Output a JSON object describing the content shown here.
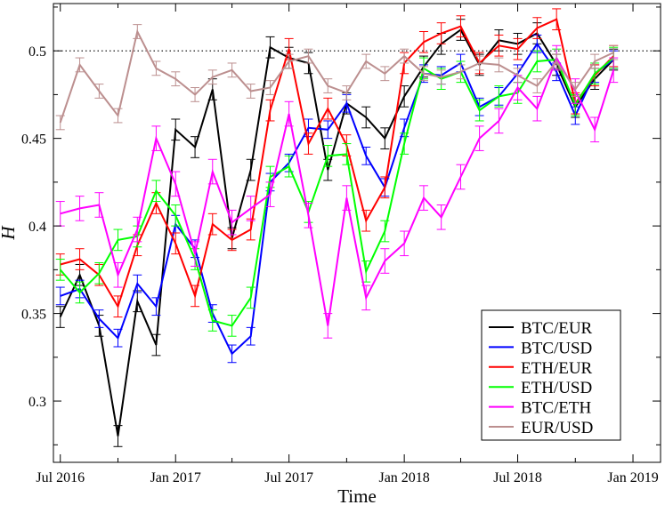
{
  "chart_data": {
    "type": "line",
    "xlabel": "Time",
    "ylabel": "H",
    "xlim": [
      "2016-06-20",
      "2019-02-14"
    ],
    "ylim": [
      0.265,
      0.527
    ],
    "x_ticks": [
      {
        "date": "2016-07-01",
        "label": "Jul 2016"
      },
      {
        "date": "2017-01-01",
        "label": "Jan 2017"
      },
      {
        "date": "2017-07-01",
        "label": "Jul 2017"
      },
      {
        "date": "2018-01-01",
        "label": "Jan 2018"
      },
      {
        "date": "2018-07-01",
        "label": "Jul 2018"
      },
      {
        "date": "2019-01-01",
        "label": "Jan 2019"
      }
    ],
    "y_ticks": [
      {
        "value": 0.3,
        "label": "0.3"
      },
      {
        "value": 0.35,
        "label": "0.35"
      },
      {
        "value": 0.4,
        "label": "0.4"
      },
      {
        "value": 0.45,
        "label": "0.45"
      },
      {
        "value": 0.5,
        "label": "0.5"
      }
    ],
    "reference_line": {
      "value": 0.5,
      "style": "dotted"
    },
    "legend_position": "bottom-right",
    "x": [
      "2016-07-01",
      "2016-08-01",
      "2016-09-01",
      "2016-10-01",
      "2016-11-01",
      "2016-12-01",
      "2017-01-01",
      "2017-02-01",
      "2017-03-01",
      "2017-04-01",
      "2017-05-01",
      "2017-06-01",
      "2017-07-01",
      "2017-08-01",
      "2017-09-01",
      "2017-10-01",
      "2017-11-01",
      "2017-12-01",
      "2018-01-01",
      "2018-02-01",
      "2018-03-01",
      "2018-04-01",
      "2018-05-01",
      "2018-06-01",
      "2018-07-01",
      "2018-08-01",
      "2018-09-01",
      "2018-10-01",
      "2018-11-01",
      "2018-12-01"
    ],
    "series": [
      {
        "name": "BTC/EUR",
        "color": "#000000",
        "error": 0.006,
        "values": [
          0.348,
          0.372,
          0.343,
          0.28,
          0.357,
          0.332,
          0.455,
          0.445,
          0.478,
          0.393,
          0.432,
          0.502,
          0.496,
          0.493,
          0.432,
          0.47,
          0.462,
          0.45,
          0.474,
          0.491,
          0.504,
          0.512,
          0.492,
          0.506,
          0.504,
          0.51,
          0.492,
          0.468,
          0.484,
          0.495
        ]
      },
      {
        "name": "BTC/USD",
        "color": "#0000ff",
        "error": 0.005,
        "values": [
          0.36,
          0.364,
          0.347,
          0.336,
          0.367,
          0.354,
          0.401,
          0.387,
          0.35,
          0.327,
          0.337,
          0.425,
          0.436,
          0.456,
          0.455,
          0.47,
          0.44,
          0.422,
          0.456,
          0.487,
          0.486,
          0.493,
          0.468,
          0.474,
          0.487,
          0.504,
          0.488,
          0.463,
          0.487,
          0.495
        ]
      },
      {
        "name": "ETH/EUR",
        "color": "#ff0000",
        "error": 0.006,
        "values": [
          0.378,
          0.381,
          0.372,
          0.354,
          0.389,
          0.413,
          0.39,
          0.36,
          0.401,
          0.392,
          0.398,
          0.466,
          0.501,
          0.447,
          0.467,
          0.446,
          0.403,
          0.422,
          0.493,
          0.505,
          0.51,
          0.514,
          0.493,
          0.503,
          0.501,
          0.513,
          0.518,
          0.47,
          0.486,
          0.497
        ]
      },
      {
        "name": "ETH/USD",
        "color": "#00ff00",
        "error": 0.006,
        "values": [
          0.375,
          0.362,
          0.373,
          0.392,
          0.394,
          0.42,
          0.406,
          0.381,
          0.346,
          0.343,
          0.359,
          0.428,
          0.434,
          0.408,
          0.44,
          0.441,
          0.374,
          0.397,
          0.447,
          0.49,
          0.484,
          0.488,
          0.466,
          0.474,
          0.476,
          0.494,
          0.495,
          0.469,
          0.487,
          0.496
        ]
      },
      {
        "name": "BTC/ETH",
        "color": "#ff00ff",
        "error": 0.007,
        "values": [
          0.407,
          0.41,
          0.412,
          0.372,
          0.398,
          0.45,
          0.424,
          0.384,
          0.431,
          0.402,
          0.41,
          0.418,
          0.464,
          0.406,
          0.343,
          0.416,
          0.359,
          0.38,
          0.39,
          0.416,
          0.405,
          0.428,
          0.45,
          0.46,
          0.479,
          0.467,
          0.496,
          0.477,
          0.455,
          0.489
        ]
      },
      {
        "name": "EUR/USD",
        "color": "#bc8f8f",
        "error": 0.004,
        "values": [
          0.459,
          0.492,
          0.477,
          0.463,
          0.511,
          0.49,
          0.484,
          0.475,
          0.485,
          0.489,
          0.477,
          0.479,
          0.494,
          0.497,
          0.48,
          0.476,
          0.494,
          0.487,
          0.497,
          0.487,
          0.485,
          0.488,
          0.493,
          0.492,
          0.486,
          0.48,
          0.494,
          0.478,
          0.494,
          0.499
        ]
      }
    ]
  }
}
